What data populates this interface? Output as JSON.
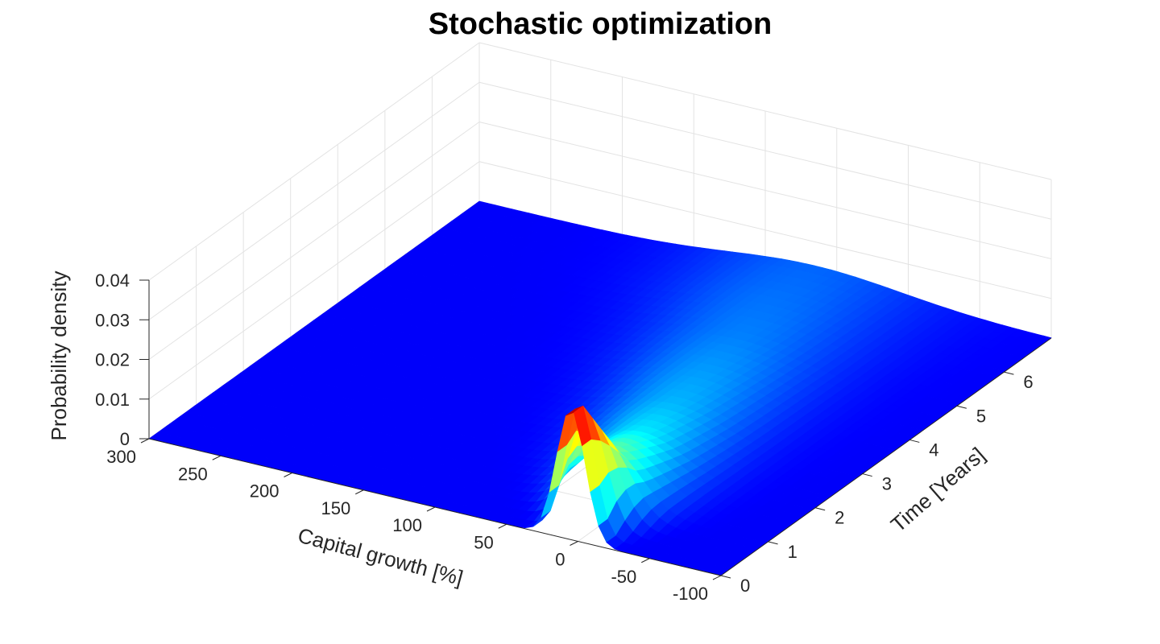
{
  "chart_data": {
    "type": "surface",
    "title": "Stochastic optimization",
    "xlabel": "Capital growth [%]",
    "ylabel": "Time [Years]",
    "zlabel": "Probability density",
    "xlim": [
      -100,
      300
    ],
    "ylim": [
      0,
      7
    ],
    "zlim": [
      0,
      0.04
    ],
    "xticks": [
      "300",
      "250",
      "200",
      "150",
      "100",
      "50",
      "0",
      "-50",
      "-100"
    ],
    "yticks": [
      "0",
      "1",
      "2",
      "3",
      "4",
      "5",
      "6"
    ],
    "zticks": [
      "0",
      "0.01",
      "0.02",
      "0.03",
      "0.04"
    ],
    "grid": true,
    "colormap": "jet",
    "peak": {
      "capital_growth": 5,
      "time": 0.2,
      "density": 0.033
    },
    "density_profile": [
      {
        "time": 0.2,
        "center": 5,
        "peak_density": 0.033,
        "spread": 10
      },
      {
        "time": 1,
        "center": 10,
        "peak_density": 0.014,
        "spread": 22
      },
      {
        "time": 2,
        "center": 20,
        "peak_density": 0.009,
        "spread": 30
      },
      {
        "time": 3,
        "center": 30,
        "peak_density": 0.007,
        "spread": 36
      },
      {
        "time": 4,
        "center": 40,
        "peak_density": 0.006,
        "spread": 42
      },
      {
        "time": 5,
        "center": 50,
        "peak_density": 0.005,
        "spread": 48
      },
      {
        "time": 6,
        "center": 60,
        "peak_density": 0.0045,
        "spread": 55
      },
      {
        "time": 7,
        "center": 65,
        "peak_density": 0.004,
        "spread": 60
      }
    ]
  }
}
